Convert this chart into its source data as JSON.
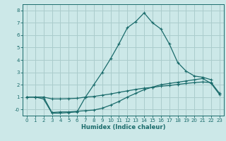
{
  "title": "",
  "xlabel": "Humidex (Indice chaleur)",
  "bg_color": "#cce8e8",
  "grid_color": "#aacccc",
  "line_color": "#1a6b6b",
  "xlim": [
    -0.5,
    23.5
  ],
  "ylim": [
    -0.5,
    8.5
  ],
  "xticks": [
    0,
    1,
    2,
    3,
    4,
    5,
    6,
    7,
    8,
    9,
    10,
    11,
    12,
    13,
    14,
    15,
    16,
    17,
    18,
    19,
    20,
    21,
    22,
    23
  ],
  "yticks": [
    0,
    1,
    2,
    3,
    4,
    5,
    6,
    7,
    8
  ],
  "ytick_labels": [
    "-0",
    "1",
    "2",
    "3",
    "4",
    "5",
    "6",
    "7",
    "8"
  ],
  "line1_x": [
    0,
    1,
    2,
    3,
    4,
    5,
    6,
    7,
    8,
    9,
    10,
    11,
    12,
    13,
    14,
    15,
    16,
    17,
    18,
    19,
    20,
    21,
    22,
    23
  ],
  "line1_y": [
    1.0,
    1.0,
    1.0,
    -0.25,
    -0.2,
    -0.2,
    -0.15,
    -0.1,
    -0.05,
    0.1,
    0.35,
    0.65,
    1.0,
    1.3,
    1.6,
    1.8,
    2.0,
    2.1,
    2.2,
    2.3,
    2.4,
    2.5,
    2.1,
    1.2
  ],
  "line2_x": [
    0,
    1,
    2,
    3,
    4,
    5,
    6,
    7,
    8,
    9,
    10,
    11,
    12,
    13,
    14,
    15,
    16,
    17,
    18,
    19,
    20,
    21,
    22
  ],
  "line2_y": [
    1.0,
    1.0,
    0.85,
    -0.3,
    -0.3,
    -0.25,
    -0.2,
    1.0,
    2.0,
    3.0,
    4.1,
    5.3,
    6.6,
    7.1,
    7.8,
    7.0,
    6.5,
    5.3,
    3.8,
    3.1,
    2.7,
    2.6,
    2.4
  ],
  "line3_x": [
    0,
    1,
    2,
    3,
    4,
    5,
    6,
    7,
    8,
    9,
    10,
    11,
    12,
    13,
    14,
    15,
    16,
    17,
    18,
    19,
    20,
    21,
    22,
    23
  ],
  "line3_y": [
    1.0,
    1.0,
    1.0,
    0.85,
    0.85,
    0.87,
    0.9,
    1.0,
    1.05,
    1.15,
    1.25,
    1.38,
    1.5,
    1.62,
    1.72,
    1.78,
    1.88,
    1.93,
    2.02,
    2.1,
    2.17,
    2.22,
    2.17,
    1.3
  ]
}
